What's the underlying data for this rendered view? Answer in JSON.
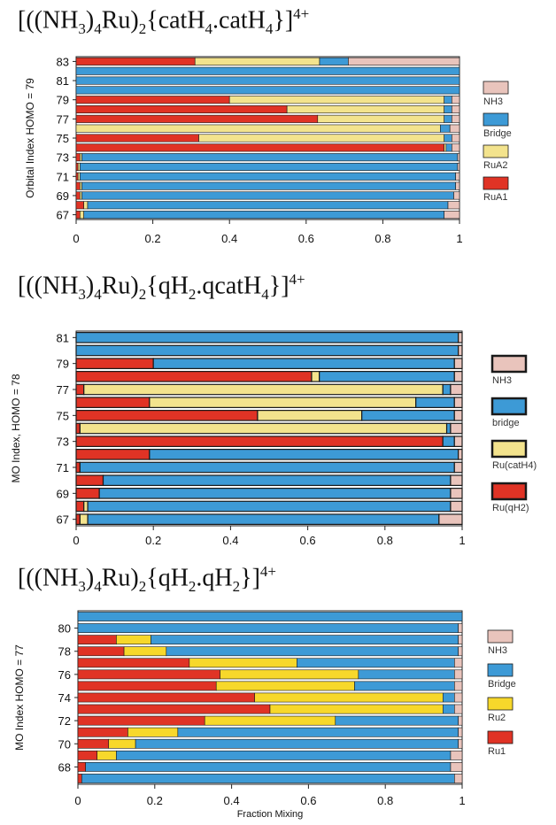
{
  "chart_data": [
    {
      "type": "bar",
      "stacked": true,
      "orientation": "horizontal",
      "title_parts": [
        "[((NH",
        "3",
        ")",
        "4",
        "Ru)",
        "2",
        "{catH",
        "4",
        ".catH",
        "4",
        "}]",
        "4+"
      ],
      "ylabel": "Orbital Index HOMO = 79",
      "xlabel": "",
      "xlim": [
        0,
        1
      ],
      "x_ticks": [
        "0",
        "0.2",
        "0.4",
        "0.6",
        "0.8",
        "1"
      ],
      "y_tick_labels": [
        "67",
        "69",
        "71",
        "73",
        "75",
        "77",
        "79",
        "81",
        "83"
      ],
      "categories": [
        67,
        68,
        69,
        70,
        71,
        72,
        73,
        74,
        75,
        76,
        77,
        78,
        79,
        80,
        81,
        82,
        83
      ],
      "legend": [
        "NH3",
        "Bridge",
        "RuA2",
        "RuA1"
      ],
      "legend_position": "right",
      "border_style": "thin",
      "series": [
        {
          "name": "RuA1",
          "color": "#e03325",
          "values": [
            0.01,
            0.02,
            0.01,
            0.01,
            0.005,
            0.005,
            0.01,
            0.96,
            0.32,
            0.0,
            0.63,
            0.55,
            0.4,
            0.0,
            0.0,
            0.0,
            0.31
          ]
        },
        {
          "name": "RuA2",
          "color": "#f3e38d",
          "values": [
            0.01,
            0.01,
            0.005,
            0.005,
            0.005,
            0.005,
            0.005,
            0.005,
            0.64,
            0.95,
            0.33,
            0.41,
            0.56,
            0.0,
            0.0,
            0.0,
            0.325
          ]
        },
        {
          "name": "Bridge",
          "color": "#3d9ad6",
          "values": [
            0.94,
            0.94,
            0.97,
            0.975,
            0.98,
            0.985,
            0.98,
            0.015,
            0.02,
            0.025,
            0.02,
            0.02,
            0.02,
            1.0,
            1.0,
            1.0,
            0.075
          ]
        },
        {
          "name": "NH3",
          "color": "#e9c4bc",
          "values": [
            0.04,
            0.03,
            0.015,
            0.01,
            0.01,
            0.005,
            0.005,
            0.02,
            0.02,
            0.025,
            0.02,
            0.02,
            0.02,
            0.0,
            0.0,
            0.0,
            0.29
          ]
        }
      ]
    },
    {
      "type": "bar",
      "stacked": true,
      "orientation": "horizontal",
      "title_parts": [
        "[((NH",
        "3",
        ")",
        "4",
        "Ru)",
        "2",
        "{qH",
        "2",
        ".qcatH",
        "4",
        "}]",
        "4+"
      ],
      "ylabel": "MO Index, HOMO = 78",
      "xlabel": "",
      "xlim": [
        0,
        1
      ],
      "x_ticks": [
        "0",
        "0.2",
        "0.4",
        "0.6",
        "0.8",
        "1"
      ],
      "y_tick_labels": [
        "67",
        "69",
        "71",
        "73",
        "75",
        "77",
        "79",
        "81"
      ],
      "categories": [
        67,
        68,
        69,
        70,
        71,
        72,
        73,
        74,
        75,
        76,
        77,
        78,
        79,
        80,
        81
      ],
      "legend": [
        "NH3",
        "bridge",
        "Ru(catH4)",
        "Ru(qH2)"
      ],
      "legend_position": "right",
      "border_style": "thick",
      "series": [
        {
          "name": "Ru(qH2)",
          "color": "#e03325",
          "values": [
            0.01,
            0.02,
            0.06,
            0.07,
            0.01,
            0.19,
            0.95,
            0.01,
            0.47,
            0.19,
            0.02,
            0.61,
            0.2,
            0.0,
            0.0
          ]
        },
        {
          "name": "Ru(catH4)",
          "color": "#f3e38d",
          "values": [
            0.02,
            0.01,
            0.0,
            0.0,
            0.0,
            0.0,
            0.0,
            0.95,
            0.27,
            0.69,
            0.93,
            0.02,
            0.0,
            0.0,
            0.0
          ]
        },
        {
          "name": "bridge",
          "color": "#3d9ad6",
          "values": [
            0.91,
            0.94,
            0.91,
            0.9,
            0.97,
            0.8,
            0.03,
            0.01,
            0.24,
            0.1,
            0.02,
            0.35,
            0.78,
            0.99,
            0.99
          ]
        },
        {
          "name": "NH3",
          "color": "#e9c4bc",
          "values": [
            0.06,
            0.03,
            0.03,
            0.03,
            0.02,
            0.01,
            0.02,
            0.03,
            0.02,
            0.02,
            0.03,
            0.02,
            0.02,
            0.01,
            0.01
          ]
        }
      ]
    },
    {
      "type": "bar",
      "stacked": true,
      "orientation": "horizontal",
      "title_parts": [
        "[((NH",
        "3",
        ")",
        "4",
        "Ru)",
        "2",
        "{qH",
        "2",
        ".qH",
        "2",
        "}]",
        "4+"
      ],
      "ylabel": "MO Index HOMO = 77",
      "xlabel": "Fraction Mixing",
      "xlim": [
        0,
        1
      ],
      "x_ticks": [
        "0",
        "0.2",
        "0.4",
        "0.6",
        "0.8",
        "1"
      ],
      "y_tick_labels": [
        "68",
        "70",
        "72",
        "74",
        "76",
        "78",
        "80"
      ],
      "categories": [
        67,
        68,
        69,
        70,
        71,
        72,
        73,
        74,
        75,
        76,
        77,
        78,
        79,
        80,
        81
      ],
      "legend": [
        "NH3",
        "Bridge",
        "Ru2",
        "Ru1"
      ],
      "legend_position": "right",
      "border_style": "thin",
      "series": [
        {
          "name": "Ru1",
          "color": "#e03325",
          "values": [
            0.01,
            0.02,
            0.05,
            0.08,
            0.13,
            0.33,
            0.5,
            0.46,
            0.36,
            0.37,
            0.29,
            0.12,
            0.1,
            0.0,
            0.0
          ]
        },
        {
          "name": "Ru2",
          "color": "#f7d82b",
          "values": [
            0.0,
            0.0,
            0.05,
            0.07,
            0.13,
            0.34,
            0.45,
            0.49,
            0.36,
            0.36,
            0.28,
            0.11,
            0.09,
            0.0,
            0.0
          ]
        },
        {
          "name": "Bridge",
          "color": "#3d9ad6",
          "values": [
            0.97,
            0.95,
            0.87,
            0.84,
            0.73,
            0.32,
            0.03,
            0.03,
            0.26,
            0.25,
            0.41,
            0.76,
            0.8,
            0.99,
            1.0
          ]
        },
        {
          "name": "NH3",
          "color": "#e9c4bc",
          "values": [
            0.02,
            0.03,
            0.03,
            0.01,
            0.01,
            0.01,
            0.02,
            0.02,
            0.02,
            0.02,
            0.02,
            0.01,
            0.01,
            0.01,
            0.0
          ]
        }
      ]
    }
  ]
}
